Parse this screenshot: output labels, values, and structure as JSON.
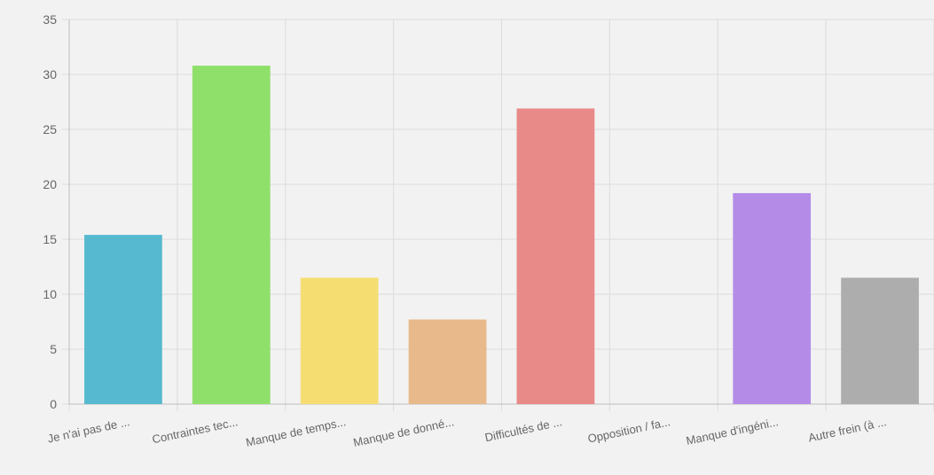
{
  "chart_data": {
    "type": "bar",
    "categories": [
      "Je n'ai pas de ...",
      "Contraintes tec...",
      "Manque de temps...",
      "Manque de donné...",
      "Difficultés de ...",
      "Opposition / fa...",
      "Manque d'ingéni...",
      "Autre frein (à ..."
    ],
    "values": [
      15.4,
      30.8,
      11.5,
      7.7,
      26.9,
      0,
      19.2,
      11.5
    ],
    "colors": [
      "#57b9cf",
      "#8fe06a",
      "#f5dd72",
      "#e8b98b",
      "#e88a87",
      "#cccccc",
      "#b48ce8",
      "#adadad"
    ],
    "ylim": [
      0,
      35
    ],
    "yticks": [
      "0",
      "5",
      "10",
      "15",
      "20",
      "25",
      "30",
      "35"
    ],
    "grid": true,
    "legend": "none",
    "title": "",
    "xlabel": "",
    "ylabel": ""
  }
}
